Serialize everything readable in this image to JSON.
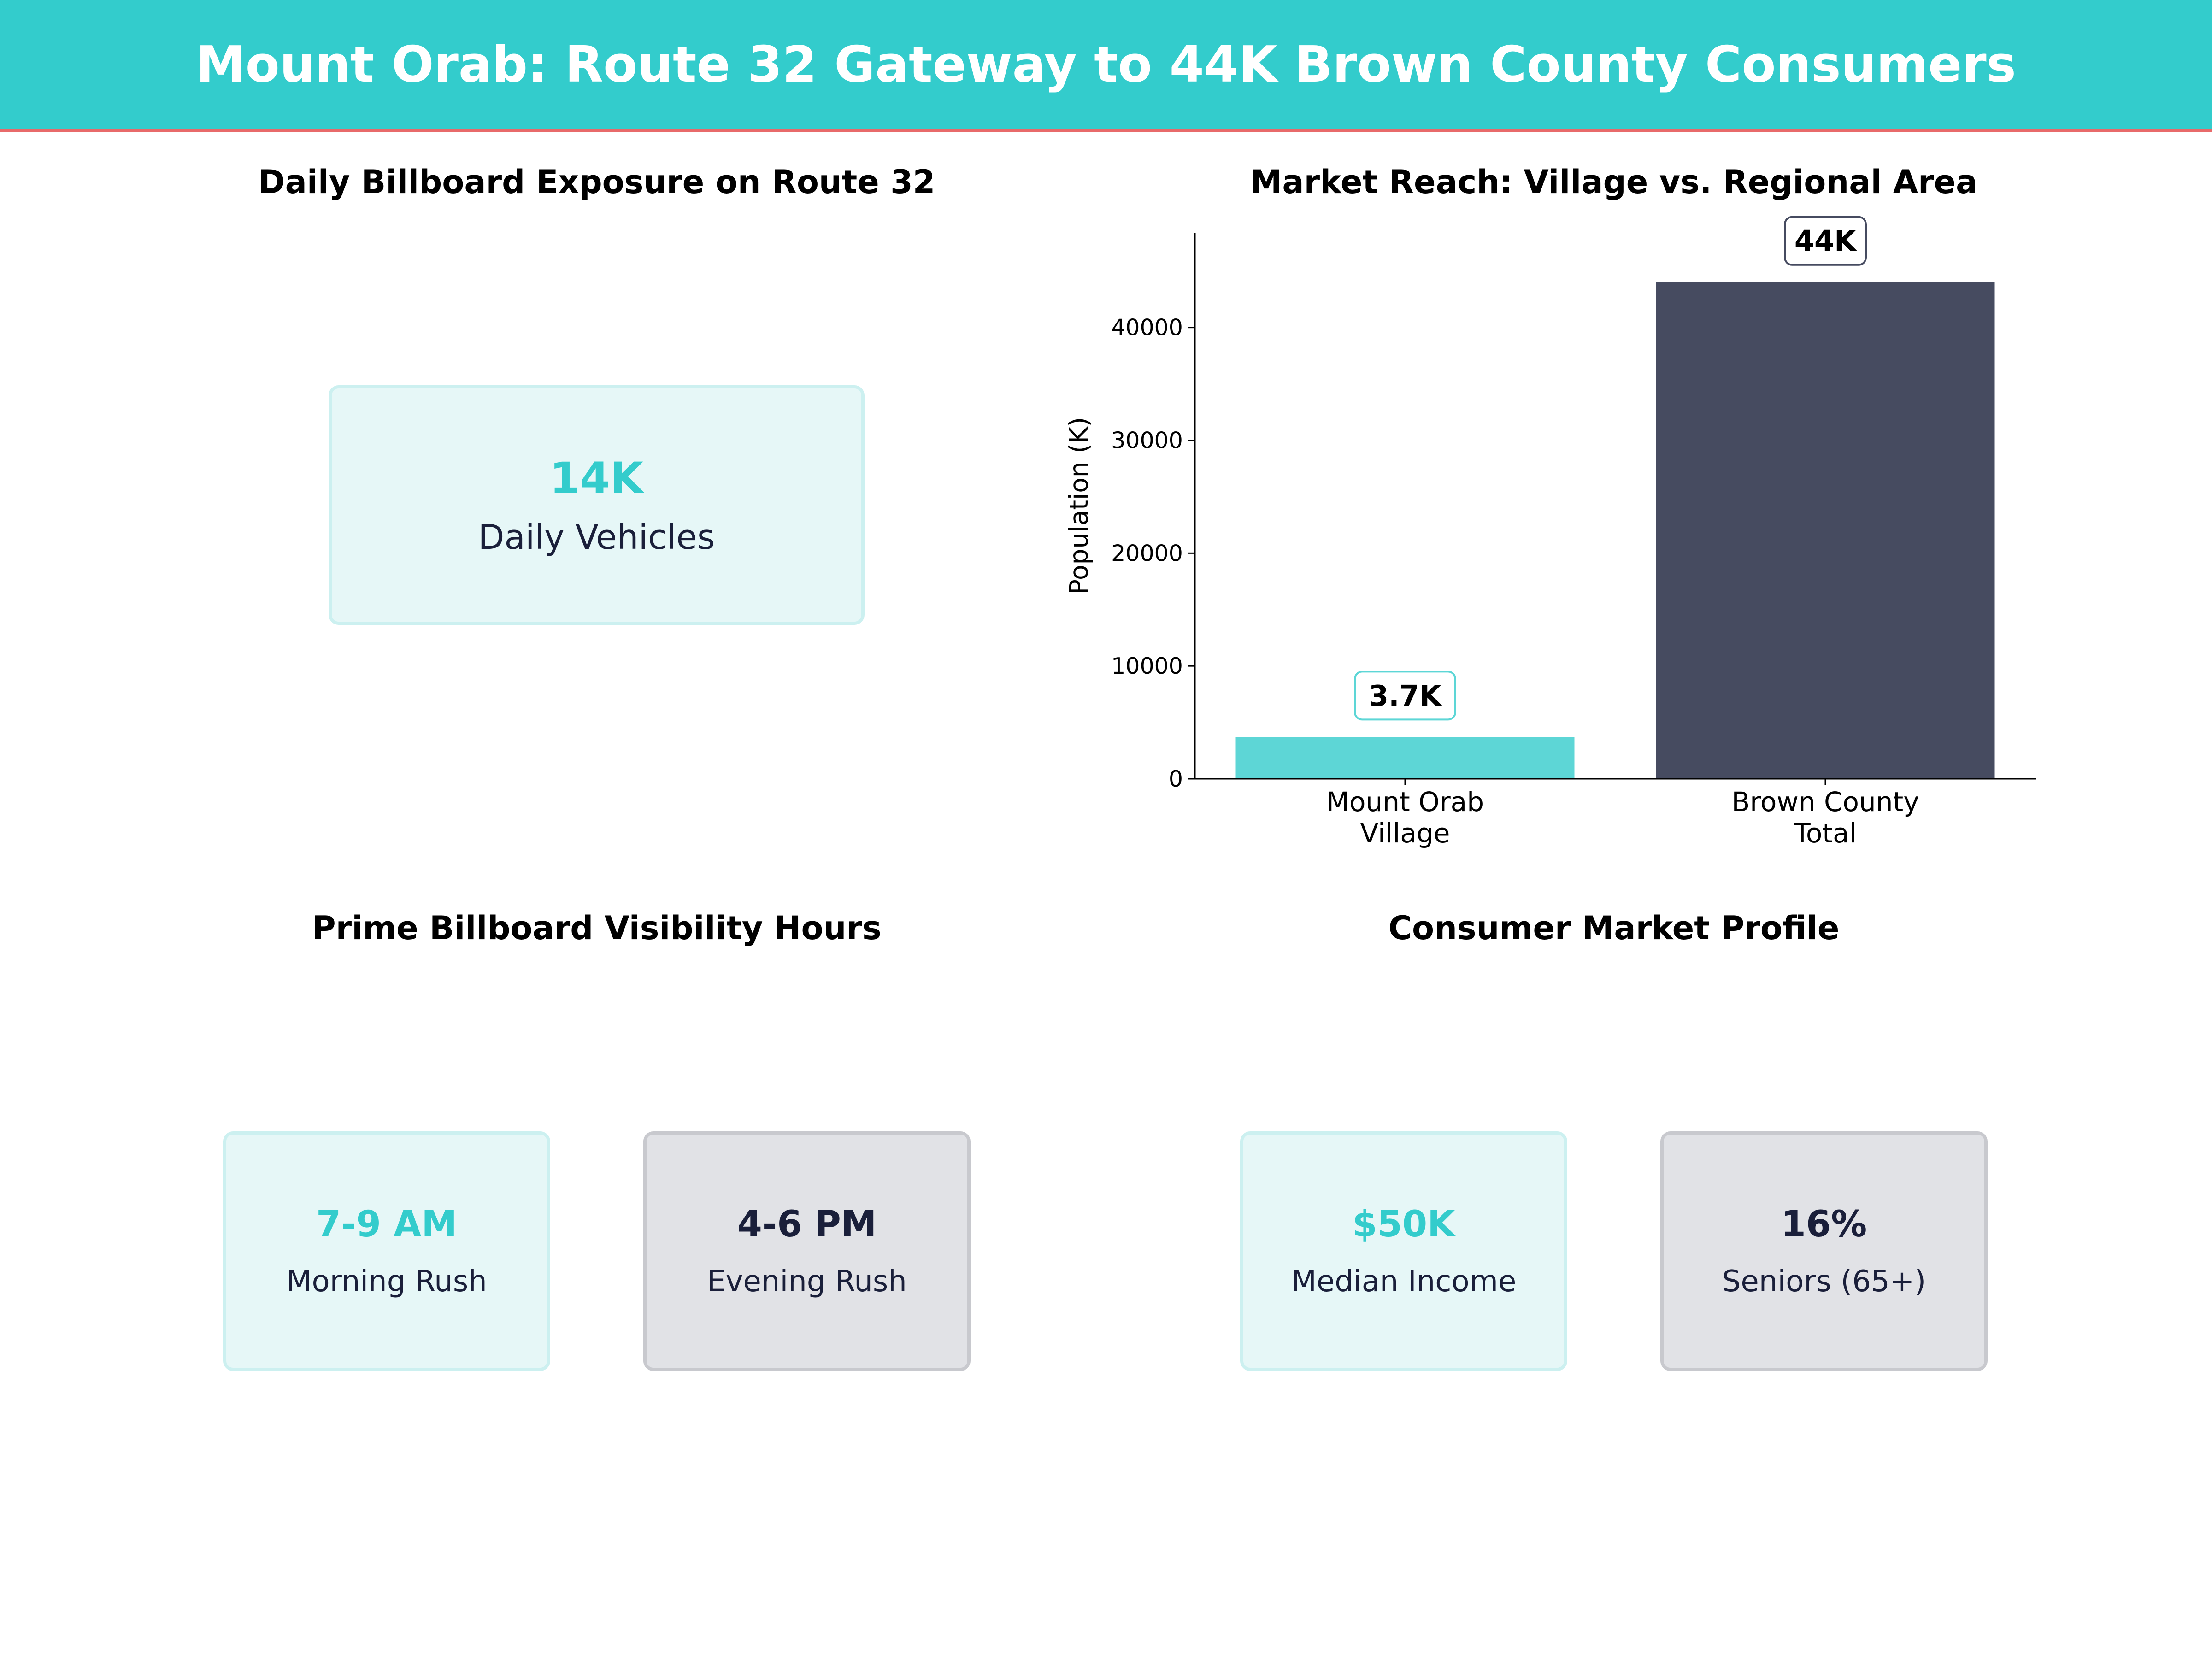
{
  "header": {
    "title": "Mount Orab: Route 32 Gateway to 44K Brown County Consumers"
  },
  "colors": {
    "teal": "#33CCCC",
    "dark": "#464B60",
    "accent_line": "#E86A6A"
  },
  "panels": {
    "exposure": {
      "title": "Daily Billboard Exposure on Route 32",
      "value": "14K",
      "label": "Daily Vehicles"
    },
    "hours": {
      "title": "Prime Billboard Visibility Hours",
      "cards": [
        {
          "value": "7-9 AM",
          "label": "Morning Rush"
        },
        {
          "value": "4-6 PM",
          "label": "Evening Rush"
        }
      ]
    },
    "profile": {
      "title": "Consumer Market Profile",
      "cards": [
        {
          "value": "$50K",
          "label": "Median Income"
        },
        {
          "value": "16%",
          "label": "Seniors (65+)"
        }
      ]
    }
  },
  "chart_data": {
    "type": "bar",
    "title": "Market Reach: Village vs. Regional Area",
    "ylabel": "Population (K)",
    "xlabel": "",
    "categories": [
      "Mount Orab\nVillage",
      "Brown County\nTotal"
    ],
    "values": [
      3700,
      44000
    ],
    "data_labels": [
      "3.7K",
      "44K"
    ],
    "colors": [
      "#5DD6D6",
      "#464B60"
    ],
    "ylim": [
      0,
      48400
    ],
    "yticks": [
      0,
      10000,
      20000,
      30000,
      40000
    ],
    "grid": false
  }
}
